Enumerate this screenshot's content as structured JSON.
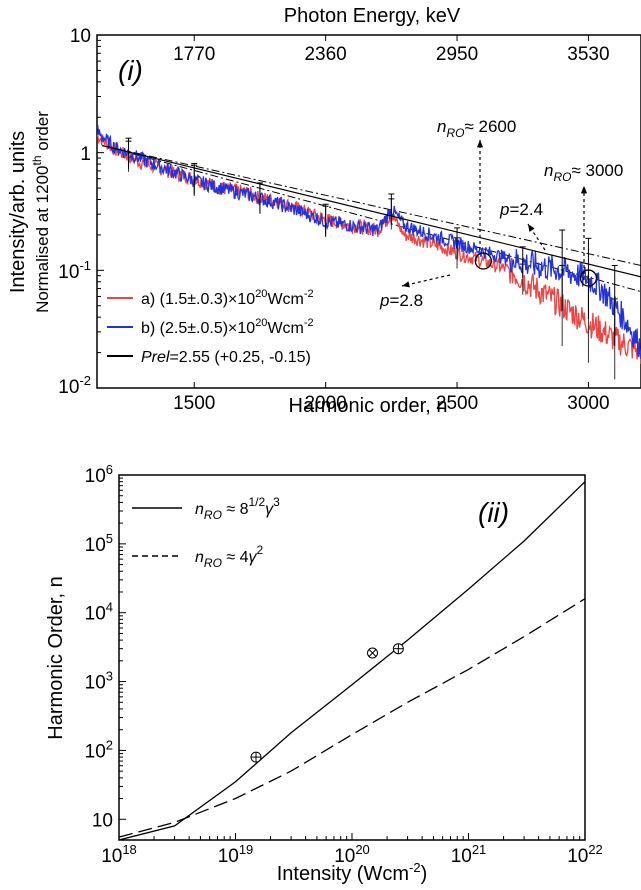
{
  "chart_data": [
    {
      "type": "line",
      "panel_label": "(i)",
      "title": "",
      "top_axis": {
        "label": "Photon Energy, keV",
        "ticks": [
          1770,
          2360,
          2950,
          3530
        ]
      },
      "xlabel": "Harmonic order, n",
      "ylabel": "Intensity/arb. units",
      "ylabel2": "Normalised at 1200th order",
      "xlim": [
        1130,
        3200
      ],
      "ylim": [
        0.01,
        10
      ],
      "yscale": "log",
      "x_ticks": [
        1500,
        2000,
        2500,
        3000
      ],
      "y_tick_labels": [
        "10",
        "1",
        "10-1",
        "10-2"
      ],
      "legend_position": "bottom-left",
      "series": [
        {
          "name": "a) (1.5±.0.3)×10²⁰Wcm⁻²",
          "color": "#ee4444",
          "x": [
            1130,
            1200,
            1300,
            1400,
            1500,
            1600,
            1700,
            1750,
            1800,
            1900,
            2000,
            2100,
            2200,
            2250,
            2300,
            2400,
            2500,
            2600,
            2700,
            2800,
            2900,
            3000,
            3100,
            3200
          ],
          "y": [
            1.4,
            1.05,
            0.82,
            0.7,
            0.6,
            0.5,
            0.46,
            0.41,
            0.4,
            0.33,
            0.27,
            0.24,
            0.22,
            0.3,
            0.2,
            0.17,
            0.14,
            0.12,
            0.1,
            0.07,
            0.05,
            0.036,
            0.026,
            0.02
          ]
        },
        {
          "name": "b) (2.5±.0.5)×10²⁰Wcm⁻²",
          "color": "#2233dd",
          "x": [
            1130,
            1200,
            1300,
            1400,
            1500,
            1600,
            1700,
            1800,
            1900,
            2000,
            2100,
            2200,
            2250,
            2300,
            2400,
            2500,
            2600,
            2700,
            2800,
            2900,
            3000,
            3050,
            3100,
            3150,
            3200
          ],
          "y": [
            1.5,
            1.1,
            0.88,
            0.72,
            0.58,
            0.5,
            0.44,
            0.38,
            0.32,
            0.26,
            0.24,
            0.22,
            0.33,
            0.24,
            0.2,
            0.17,
            0.145,
            0.125,
            0.11,
            0.1,
            0.085,
            0.07,
            0.05,
            0.035,
            0.022
          ]
        },
        {
          "name": "Prel=2.55 (+0.25, -0.15)",
          "color": "#000000",
          "x": [
            1150,
            3200
          ],
          "y": [
            1.15,
            0.088
          ]
        }
      ],
      "fits": [
        {
          "label": "p=2.8",
          "x": [
            1150,
            3200
          ],
          "y": [
            1.15,
            0.066
          ]
        },
        {
          "label": "p=2.4",
          "x": [
            1150,
            3200
          ],
          "y": [
            1.15,
            0.11
          ]
        }
      ],
      "annotations": [
        {
          "text": "nRO≈ 2600",
          "sub": "RO",
          "prefix": "n",
          "value": "≈ 2600",
          "x": 2600
        },
        {
          "text": "nRO≈ 3000",
          "sub": "RO",
          "prefix": "n",
          "value": "≈ 3000",
          "x": 3000
        },
        {
          "text": "p=2.4"
        },
        {
          "text": "p=2.8"
        }
      ]
    },
    {
      "type": "line",
      "panel_label": "(ii)",
      "title": "",
      "xlabel": "Intensity (Wcm⁻²)",
      "ylabel": "Harmonic Order, n",
      "xscale": "log",
      "yscale": "log",
      "xlim": [
        1e+18,
        1e+22
      ],
      "ylim": [
        5,
        1000000.0
      ],
      "x_tick_labels": [
        "10¹⁸",
        "10¹⁹",
        "10²⁰",
        "10²¹",
        "10²²"
      ],
      "y_tick_labels": [
        "10⁶",
        "10⁵",
        "10⁴",
        "10³",
        "10²",
        "10"
      ],
      "legend_position": "top-left",
      "series": [
        {
          "name": "nRO ≈ 8^1/2 γ^3",
          "style": "solid",
          "x": [
            1e+18,
            3e+18,
            1e+19,
            3e+19,
            1e+20,
            3e+20,
            1e+21,
            3e+21,
            1e+22
          ],
          "y": [
            5,
            8,
            35,
            180,
            900,
            4000,
            22000,
            110000,
            800000
          ]
        },
        {
          "name": "nRO ≈ 4γ^2",
          "style": "dashed",
          "x": [
            1e+18,
            3e+18,
            1e+19,
            3e+19,
            1e+20,
            3e+20,
            1e+21,
            3e+21,
            1e+22
          ],
          "y": [
            5.5,
            9,
            20,
            50,
            170,
            500,
            1500,
            4500,
            16000
          ]
        }
      ],
      "points": [
        {
          "x": 1.5e+19,
          "y": 80,
          "marker": "circle-plus"
        },
        {
          "x": 1.5e+20,
          "y": 2600,
          "marker": "circle-x"
        },
        {
          "x": 2.5e+20,
          "y": 3000,
          "marker": "circle-plus"
        }
      ]
    }
  ]
}
